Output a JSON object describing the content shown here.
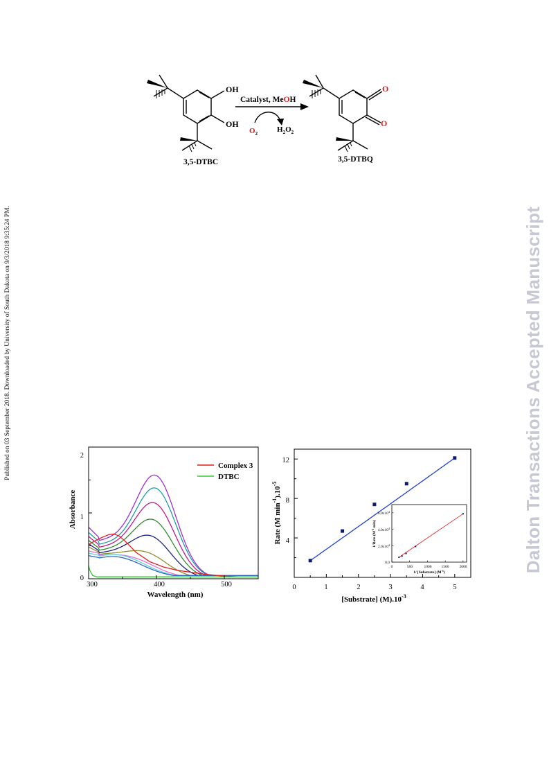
{
  "side_note": "Published on 03 September 2018. Downloaded by University of South Dakota on 9/3/2018 9:35:24 PM.",
  "watermark": "Dalton Transactions Accepted Manuscript",
  "scheme": {
    "reactant_label": "3,5-DTBC",
    "product_label": "3,5-DTBQ",
    "conditions_prefix": "Catalyst, Me",
    "conditions_O": "O",
    "conditions_H": "H",
    "oxidant": "O",
    "oxidant_sub": "2",
    "byproduct_H": "H",
    "byproduct_sub1": "2",
    "byproduct_O": "O",
    "byproduct_sub2": "2",
    "oh_top": "OH",
    "oh_bottom": "OH",
    "o_top": "O",
    "o_bottom": "O",
    "colors": {
      "red": "#d7191c",
      "black": "#000000"
    }
  },
  "chart_data": [
    {
      "type": "line",
      "xlabel": "Wavelength (nm)",
      "ylabel": "Absorbance",
      "xlim": [
        300,
        550
      ],
      "ylim": [
        0,
        2
      ],
      "x_ticks": [
        "300",
        "400",
        "500"
      ],
      "y_ticks": [
        "0",
        "1",
        "2"
      ],
      "legend_position": "top-right",
      "legend": [
        {
          "name": "Complex 3",
          "color": "#e31a1c"
        },
        {
          "name": "DTBC",
          "color": "#2ecc2e"
        }
      ],
      "scan_series": [
        {
          "peak_x": 400,
          "peak_y": 1.93,
          "base_y": 0.78,
          "dip_y": 0.62,
          "color": "#9b30d6"
        },
        {
          "peak_x": 400,
          "peak_y": 1.7,
          "base_y": 0.7,
          "dip_y": 0.56,
          "color": "#1f9aa6"
        },
        {
          "peak_x": 398,
          "peak_y": 1.44,
          "base_y": 0.64,
          "dip_y": 0.51,
          "color": "#c2188b"
        },
        {
          "peak_x": 396,
          "peak_y": 1.15,
          "base_y": 0.58,
          "dip_y": 0.46,
          "color": "#2e8b2e"
        },
        {
          "peak_x": 393,
          "peak_y": 0.87,
          "base_y": 0.53,
          "dip_y": 0.42,
          "color": "#1a237e"
        },
        {
          "peak_x": 388,
          "peak_y": 0.59,
          "base_y": 0.48,
          "dip_y": 0.4,
          "color": "#8f8f2a"
        },
        {
          "peak_x": 372,
          "peak_y": 0.43,
          "base_y": 0.42,
          "dip_y": 0.38,
          "color": "#e56bd7"
        },
        {
          "peak_x": 355,
          "peak_y": 0.4,
          "base_y": 0.38,
          "dip_y": 0.34,
          "color": "#5ad1e0"
        },
        {
          "peak_x": 350,
          "peak_y": 0.36,
          "base_y": 0.34,
          "dip_y": 0.3,
          "color": "#2a66c2"
        }
      ],
      "complex3": {
        "x": [
          300,
          310,
          320,
          330,
          337,
          345,
          355,
          370,
          390,
          410,
          430,
          450,
          470,
          490,
          500,
          520,
          550
        ],
        "y": [
          0.52,
          0.58,
          0.63,
          0.67,
          0.68,
          0.65,
          0.56,
          0.4,
          0.26,
          0.18,
          0.13,
          0.1,
          0.07,
          0.05,
          0.04,
          0.03,
          0.03
        ]
      },
      "dtbc": {
        "x": [
          300,
          302,
          306,
          312,
          320,
          340,
          380,
          450,
          500,
          550
        ],
        "y": [
          0.2,
          0.12,
          0.05,
          0.03,
          0.03,
          0.03,
          0.03,
          0.03,
          0.03,
          0.03
        ]
      }
    },
    {
      "type": "scatter",
      "xlabel": "[Substrate] (M).10",
      "xlabel_sup": "-3",
      "ylabel_main": "Rate (M min",
      "ylabel_sup1": "-1",
      "ylabel_mid": ").10",
      "ylabel_sup2": "-5",
      "xlim": [
        0,
        5.5
      ],
      "ylim": [
        0,
        13
      ],
      "x_ticks": [
        "0",
        "1",
        "2",
        "3",
        "4",
        "5"
      ],
      "y_ticks": [
        "4",
        "8",
        "12"
      ],
      "x": [
        0.5,
        1.5,
        2.5,
        3.5,
        5.0
      ],
      "y": [
        1.7,
        4.7,
        7.4,
        9.5,
        12.1
      ],
      "point_color": "#0d1c6b",
      "fit_color": "#1f3fcf",
      "inset": {
        "type": "scatter",
        "xlabel": "1/ [Substrate] (M",
        "xlabel_sup": "-1",
        "xlabel_end": ")",
        "ylabel": "1/Rate (M",
        "ylabel_sup": "-1",
        "ylabel_end": " min)",
        "xlim": [
          0,
          2100
        ],
        "ylim": [
          0,
          70000
        ],
        "x_ticks": [
          "0",
          "500",
          "1000",
          "1500",
          "2000"
        ],
        "y_ticks": [
          "0.0",
          "2.0x10",
          "4.0x10",
          "6.0x10"
        ],
        "y_tick_sup": "4",
        "x": [
          200,
          286,
          400,
          667,
          2000
        ],
        "y": [
          5900,
          7400,
          10500,
          19000,
          58800
        ],
        "point_color": "#0d1c6b",
        "fit_color": "#e31a1c"
      }
    }
  ]
}
